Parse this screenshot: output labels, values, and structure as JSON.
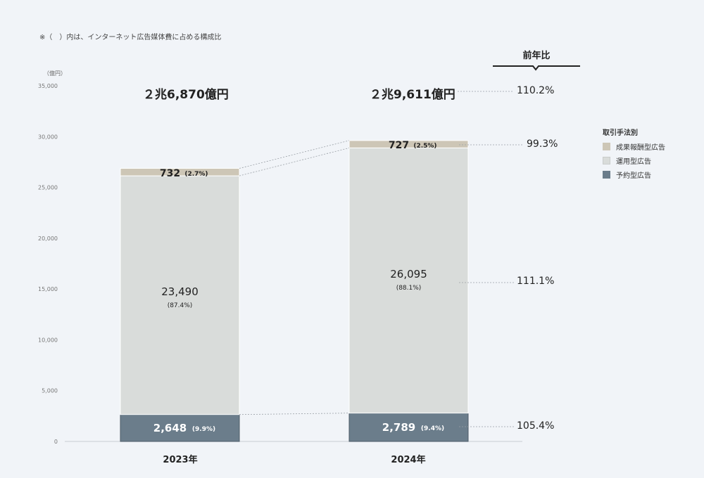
{
  "note": "※（　）内は、インターネット広告媒体費に占める構成比",
  "unit": "（億円）",
  "yoy_header": "前年比",
  "totals": [
    "２兆6,870億円",
    "２兆9,611億円"
  ],
  "legend": {
    "title": "取引手法別",
    "items": [
      {
        "label": "成果報酬型広告",
        "color": "#cdc6b6"
      },
      {
        "label": "運用型広告",
        "color": "#d9dcda"
      },
      {
        "label": "予約型広告",
        "color": "#6b7d8b"
      }
    ]
  },
  "yoy": {
    "total": "110.2%",
    "performance": "99.3%",
    "programmatic": "111.1%",
    "reserved": "105.4%"
  },
  "chart_data": {
    "type": "bar",
    "stacked": true,
    "categories": [
      "2023年",
      "2024年"
    ],
    "ylim": [
      0,
      35000
    ],
    "yticks": [
      "0",
      "5,000",
      "10,000",
      "15,000",
      "20,000",
      "25,000",
      "30,000",
      "35,000"
    ],
    "yticks_values": [
      0,
      5000,
      10000,
      15000,
      20000,
      25000,
      30000,
      35000
    ],
    "series": [
      {
        "name": "予約型広告",
        "values": [
          2648,
          2789
        ],
        "labels": [
          "2,648",
          "2,789"
        ],
        "shares": [
          "(9.9%)",
          "(9.4%)"
        ],
        "color": "#6b7d8b"
      },
      {
        "name": "運用型広告",
        "values": [
          23490,
          26095
        ],
        "labels": [
          "23,490",
          "26,095"
        ],
        "shares": [
          "(87.4%)",
          "(88.1%)"
        ],
        "color": "#d9dcda"
      },
      {
        "name": "成果報酬型広告",
        "values": [
          732,
          727
        ],
        "labels": [
          "732",
          "727"
        ],
        "shares": [
          "(2.7%)",
          "(2.5%)"
        ],
        "color": "#cdc6b6"
      }
    ],
    "legend_position": "right"
  }
}
